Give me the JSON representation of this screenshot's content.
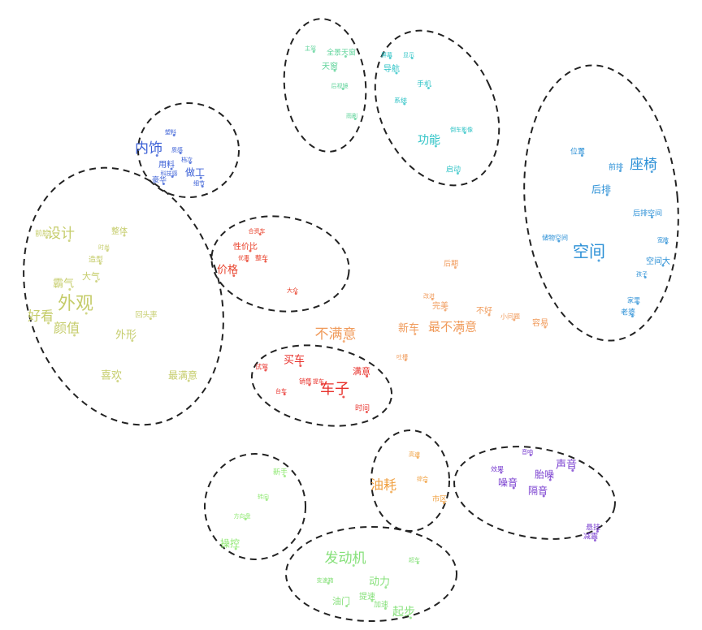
{
  "clusters": [
    {
      "color": "#3a5fd6",
      "words": [
        "内饰",
        "做工",
        "用料",
        "塑料",
        "细节",
        "豪华",
        "档次",
        "科技感",
        "质感"
      ]
    },
    {
      "color": "#c5cc6a",
      "words": [
        "设计",
        "外观",
        "好看",
        "颜值",
        "霸气",
        "外形",
        "喜欢",
        "最满意",
        "大气",
        "整体",
        "造型",
        "回头率",
        "前脸",
        "时尚"
      ]
    },
    {
      "color": "#e8402a",
      "words": [
        "价格",
        "性价比",
        "整车",
        "大众",
        "优惠",
        "合资车"
      ]
    },
    {
      "color": "#e8302a",
      "words": [
        "买车",
        "车子",
        "满意",
        "时间",
        "试驾",
        "销售",
        "提车",
        "台车"
      ]
    },
    {
      "color": "#5fd39a",
      "words": [
        "天窗",
        "全景天窗",
        "后视镜",
        "主驾",
        "雨刷"
      ]
    },
    {
      "color": "#2ec3c6",
      "words": [
        "导航",
        "手机",
        "系统",
        "功能",
        "启动",
        "显示",
        "屏幕",
        "倒车影像"
      ]
    },
    {
      "color": "#2a8fd6",
      "words": [
        "座椅",
        "后排",
        "前排",
        "空间",
        "后排空间",
        "空间大",
        "位置",
        "储物空间",
        "老婆",
        "家里",
        "孩子",
        "宽敞"
      ]
    },
    {
      "color": "#f09a5a",
      "words": [
        "不满意",
        "新车",
        "最不满意",
        "完美",
        "容易",
        "不好",
        "后期",
        "改进",
        "吐槽",
        "小问题"
      ]
    },
    {
      "color": "#f0a040",
      "words": [
        "油耗",
        "市区",
        "高速",
        "综合"
      ]
    },
    {
      "color": "#7a3fd0",
      "words": [
        "声音",
        "胎噪",
        "噪音",
        "隔音",
        "悬挂",
        "减震",
        "效果",
        "音响"
      ]
    },
    {
      "color": "#8ee870",
      "words": [
        "操控",
        "新手",
        "方向盘",
        "转向"
      ]
    },
    {
      "color": "#86e07a",
      "words": [
        "发动机",
        "动力",
        "油门",
        "提速",
        "起步",
        "加速",
        "变速箱",
        "超车"
      ]
    }
  ]
}
